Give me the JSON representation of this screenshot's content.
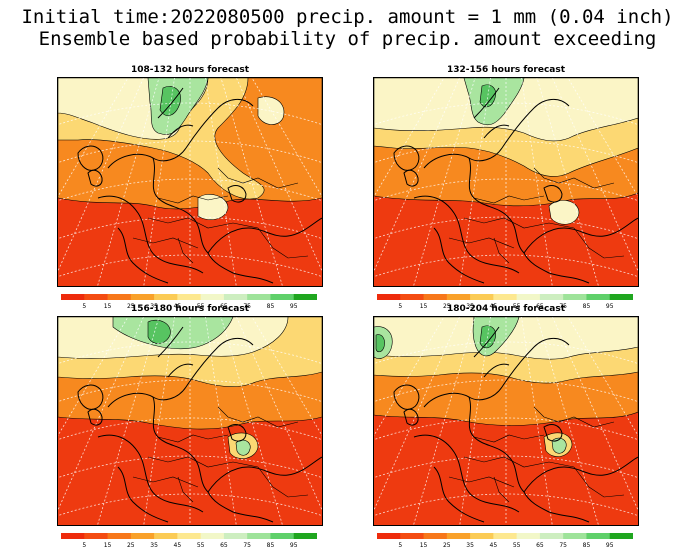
{
  "title_line1": "Initial time:2022080500 precip. amount = 1 mm (0.04 inch)",
  "title_line2": "Ensemble based probability of precip. amount exceeding",
  "panels": [
    {
      "title": "108-132 hours forecast"
    },
    {
      "title": "132-156 hours forecast"
    },
    {
      "title": "156-180 hours forecast"
    },
    {
      "title": "180-204 hours forecast"
    }
  ],
  "colorbar": {
    "labels": [
      "5",
      "15",
      "25",
      "35",
      "45",
      "55",
      "65",
      "75",
      "85",
      "95"
    ],
    "colors": [
      "#ee2b0c",
      "#f44c12",
      "#f7771a",
      "#f9a12a",
      "#fbcb55",
      "#fde890",
      "#f2f7c8",
      "#cdeec0",
      "#9ee39a",
      "#5fd06a",
      "#1fa61f"
    ]
  },
  "field_colors": {
    "low": "#ee3a10",
    "mid": "#f7891f",
    "midhigh": "#fcd873",
    "high": "#fbf5c6",
    "top": "#a9e59f",
    "peak": "#57c461"
  }
}
